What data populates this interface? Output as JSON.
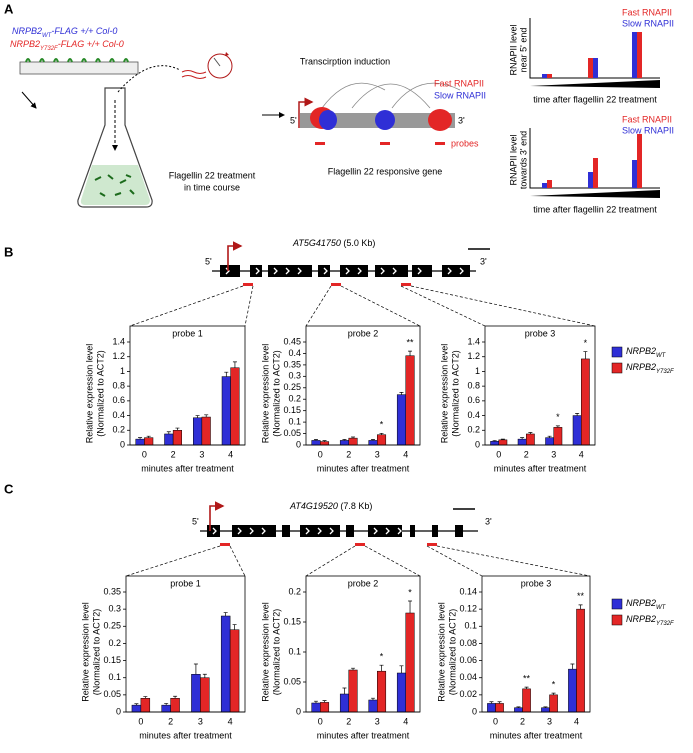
{
  "panel_labels": [
    "A",
    "B",
    "C"
  ],
  "panel_a": {
    "line1": {
      "gene": "NRPB2",
      "sub": "WT",
      "rest": "-FLAG +/+ Col-0"
    },
    "line2": {
      "gene": "NRPB2",
      "sub": "Y732F",
      "rest": "-FLAG +/+ Col-0"
    },
    "treatment": [
      "Flagellin 22 treatment",
      "in time course"
    ],
    "induction": "Transcirption induction",
    "fast": "Fast RNAPII",
    "slow": "Slow RNAPII",
    "five_prime": "5'",
    "three_prime": "3'",
    "probes": "probes",
    "gene_label": "Flagellin 22 responsive gene",
    "schematic_top": {
      "fast": "Fast RNAPII",
      "slow": "Slow RNAPII",
      "ylabel": [
        "RNAPII level",
        "near 5' end"
      ],
      "xlabel": "time after flagellin 22 treatment"
    },
    "schematic_bottom": {
      "fast": "Fast RNAPII",
      "slow": "Slow RNAPII",
      "ylabel": [
        "RNAPII level",
        "towards 3' end"
      ],
      "xlabel": "time after flagellin 22 treatment"
    }
  },
  "gene_b": {
    "name": "AT5G41750",
    "size": "(5.0 Kb)",
    "five_prime": "5'",
    "three_prime": "3'"
  },
  "gene_c": {
    "name": "AT4G19520",
    "size": "(7.8 Kb)",
    "five_prime": "5'",
    "three_prime": "3'"
  },
  "chart_data": [
    {
      "type": "bar",
      "title": "probe 1",
      "categories": [
        "0",
        "2",
        "3",
        "4"
      ],
      "x_label": "minutes after treatment",
      "y_label": [
        "Relative expression level",
        "(Normalized to ACT2)"
      ],
      "ylim": [
        0,
        1.4
      ],
      "yticks": [
        0,
        0.2,
        0.4,
        0.6,
        0.8,
        1,
        1.2,
        1.4
      ],
      "series": [
        {
          "name": "NRPB2",
          "name_subscript": "WT",
          "color": "#2f2fd6",
          "values": [
            0.08,
            0.15,
            0.37,
            0.93
          ],
          "errors": [
            0.02,
            0.03,
            0.03,
            0.06
          ]
        },
        {
          "name": "NRPB2",
          "name_subscript": "Y732F",
          "color": "#e32626",
          "values": [
            0.1,
            0.2,
            0.38,
            1.05
          ],
          "errors": [
            0.02,
            0.03,
            0.03,
            0.08
          ]
        }
      ],
      "significance": [
        null,
        null,
        null,
        null
      ]
    },
    {
      "type": "bar",
      "title": "probe 2",
      "categories": [
        "0",
        "2",
        "3",
        "4"
      ],
      "x_label": "minutes after treatment",
      "y_label": [
        "Relative expression level",
        "(Normalized to ACT2)"
      ],
      "ylim": [
        0,
        0.45
      ],
      "yticks": [
        0,
        0.05,
        0.1,
        0.15,
        0.2,
        0.25,
        0.3,
        0.35,
        0.4,
        0.45
      ],
      "series": [
        {
          "name": "NRPB2",
          "name_subscript": "WT",
          "color": "#2f2fd6",
          "values": [
            0.02,
            0.02,
            0.02,
            0.22
          ],
          "errors": [
            0.004,
            0.004,
            0.004,
            0.01
          ]
        },
        {
          "name": "NRPB2",
          "name_subscript": "Y732F",
          "color": "#e32626",
          "values": [
            0.015,
            0.03,
            0.045,
            0.39
          ],
          "errors": [
            0.004,
            0.005,
            0.006,
            0.02
          ]
        }
      ],
      "significance": [
        null,
        null,
        "*",
        "**"
      ]
    },
    {
      "type": "bar",
      "title": "probe 3",
      "categories": [
        "0",
        "2",
        "3",
        "4"
      ],
      "x_label": "minutes after treatment",
      "y_label": [
        "Relative expression level",
        "(Normalized to ACT2)"
      ],
      "ylim": [
        0,
        1.4
      ],
      "yticks": [
        0,
        0.2,
        0.4,
        0.6,
        0.8,
        1,
        1.2,
        1.4
      ],
      "series": [
        {
          "name": "NRPB2",
          "name_subscript": "WT",
          "color": "#2f2fd6",
          "values": [
            0.05,
            0.08,
            0.1,
            0.4
          ],
          "errors": [
            0.01,
            0.02,
            0.02,
            0.03
          ]
        },
        {
          "name": "NRPB2",
          "name_subscript": "Y732F",
          "color": "#e32626",
          "values": [
            0.07,
            0.15,
            0.24,
            1.17
          ],
          "errors": [
            0.01,
            0.02,
            0.02,
            0.1
          ]
        }
      ],
      "significance": [
        null,
        null,
        "*",
        "*"
      ]
    },
    {
      "type": "bar",
      "title": "probe 1",
      "categories": [
        "0",
        "2",
        "3",
        "4"
      ],
      "x_label": "minutes after treatment",
      "y_label": [
        "Relative expression level",
        "(Normalized to ACT2)"
      ],
      "ylim": [
        0,
        0.35
      ],
      "yticks": [
        0,
        0.05,
        0.1,
        0.15,
        0.2,
        0.25,
        0.3,
        0.35
      ],
      "series": [
        {
          "name": "NRPB2",
          "name_subscript": "WT",
          "color": "#2f2fd6",
          "values": [
            0.02,
            0.02,
            0.11,
            0.28
          ],
          "errors": [
            0.004,
            0.005,
            0.03,
            0.01
          ]
        },
        {
          "name": "NRPB2",
          "name_subscript": "Y732F",
          "color": "#e32626",
          "values": [
            0.04,
            0.04,
            0.1,
            0.24
          ],
          "errors": [
            0.005,
            0.006,
            0.01,
            0.015
          ]
        }
      ],
      "significance": [
        null,
        null,
        null,
        null
      ]
    },
    {
      "type": "bar",
      "title": "probe 2",
      "categories": [
        "0",
        "2",
        "3",
        "4"
      ],
      "x_label": "minutes after treatment",
      "y_label": [
        "Relative expression level",
        "(Normalized to ACT2)"
      ],
      "ylim": [
        0,
        0.2
      ],
      "yticks": [
        0,
        0.05,
        0.1,
        0.15,
        0.2
      ],
      "series": [
        {
          "name": "NRPB2",
          "name_subscript": "WT",
          "color": "#2f2fd6",
          "values": [
            0.015,
            0.03,
            0.02,
            0.065
          ],
          "errors": [
            0.003,
            0.01,
            0.003,
            0.012
          ]
        },
        {
          "name": "NRPB2",
          "name_subscript": "Y732F",
          "color": "#e32626",
          "values": [
            0.016,
            0.07,
            0.068,
            0.165
          ],
          "errors": [
            0.003,
            0.003,
            0.01,
            0.02
          ]
        }
      ],
      "significance": [
        null,
        null,
        "*",
        "*"
      ]
    },
    {
      "type": "bar",
      "title": "probe 3",
      "categories": [
        "0",
        "2",
        "3",
        "4"
      ],
      "x_label": "minutes after treatment",
      "y_label": [
        "Relative expression level",
        "(Normalized to ACT2)"
      ],
      "ylim": [
        0,
        0.14
      ],
      "yticks": [
        0,
        0.02,
        0.04,
        0.06,
        0.08,
        0.1,
        0.12,
        0.14
      ],
      "series": [
        {
          "name": "NRPB2",
          "name_subscript": "WT",
          "color": "#2f2fd6",
          "values": [
            0.01,
            0.005,
            0.005,
            0.05
          ],
          "errors": [
            0.002,
            0.001,
            0.001,
            0.006
          ]
        },
        {
          "name": "NRPB2",
          "name_subscript": "Y732F",
          "color": "#e32626",
          "values": [
            0.01,
            0.027,
            0.02,
            0.12
          ],
          "errors": [
            0.002,
            0.002,
            0.002,
            0.005
          ]
        }
      ],
      "significance": [
        null,
        "**",
        "*",
        "**"
      ]
    }
  ]
}
